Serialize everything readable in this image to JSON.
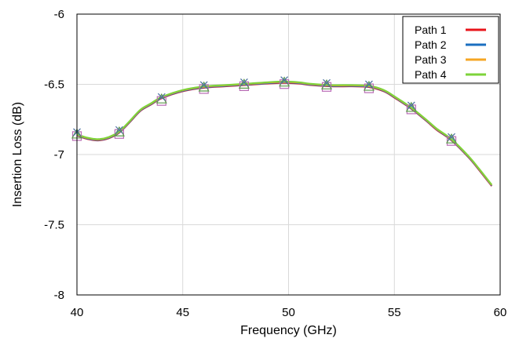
{
  "chart_data": {
    "type": "line",
    "xlabel": "Frequency (GHz)",
    "ylabel": "Insertion Loss (dB)",
    "xlim": [
      40,
      60
    ],
    "ylim": [
      -8,
      -6
    ],
    "x_ticks": [
      40,
      45,
      50,
      55,
      60
    ],
    "x_tick_labels": [
      "40",
      "45",
      "50",
      "55",
      "60"
    ],
    "y_ticks": [
      -6,
      -6.5,
      -7,
      -7.5,
      -8
    ],
    "y_tick_labels": [
      "-6",
      "-6.5",
      "-7",
      "-7.5",
      "-8"
    ],
    "grid": true,
    "legend_position": "top-right",
    "x": [
      40,
      40.5,
      41,
      41.5,
      42,
      42.5,
      43,
      43.5,
      44,
      45,
      46,
      47,
      48,
      49,
      49.8,
      50.5,
      51,
      52,
      53,
      53.8,
      54.5,
      55,
      55.8,
      56.5,
      57,
      57.7,
      58.5,
      59,
      59.6
    ],
    "series": [
      {
        "name": "Path 1",
        "color": "#e8141b",
        "values": [
          -6.865,
          -6.89,
          -6.9,
          -6.885,
          -6.845,
          -6.77,
          -6.69,
          -6.645,
          -6.6,
          -6.55,
          -6.525,
          -6.515,
          -6.505,
          -6.495,
          -6.49,
          -6.495,
          -6.505,
          -6.515,
          -6.515,
          -6.52,
          -6.55,
          -6.595,
          -6.675,
          -6.76,
          -6.825,
          -6.9,
          -7.02,
          -7.11,
          -7.225
        ]
      },
      {
        "name": "Path 2",
        "color": "#1b6fc0",
        "values": [
          -6.862,
          -6.887,
          -6.897,
          -6.882,
          -6.842,
          -6.767,
          -6.687,
          -6.642,
          -6.597,
          -6.547,
          -6.522,
          -6.512,
          -6.502,
          -6.492,
          -6.487,
          -6.492,
          -6.502,
          -6.512,
          -6.512,
          -6.517,
          -6.547,
          -6.592,
          -6.672,
          -6.757,
          -6.822,
          -6.897,
          -7.017,
          -7.107,
          -7.222
        ]
      },
      {
        "name": "Path 3",
        "color": "#f5a623",
        "values": [
          -6.858,
          -6.883,
          -6.893,
          -6.878,
          -6.838,
          -6.763,
          -6.683,
          -6.638,
          -6.593,
          -6.543,
          -6.518,
          -6.508,
          -6.498,
          -6.488,
          -6.483,
          -6.488,
          -6.498,
          -6.508,
          -6.508,
          -6.513,
          -6.543,
          -6.588,
          -6.668,
          -6.753,
          -6.818,
          -6.893,
          -7.013,
          -7.103,
          -7.218
        ]
      },
      {
        "name": "Path 4",
        "color": "#7dd33a",
        "values": [
          -6.855,
          -6.88,
          -6.89,
          -6.875,
          -6.835,
          -6.76,
          -6.68,
          -6.635,
          -6.59,
          -6.54,
          -6.515,
          -6.505,
          -6.495,
          -6.485,
          -6.48,
          -6.485,
          -6.495,
          -6.505,
          -6.505,
          -6.51,
          -6.54,
          -6.585,
          -6.665,
          -6.75,
          -6.815,
          -6.89,
          -7.01,
          -7.1,
          -7.215
        ]
      }
    ],
    "marker_x": [
      40,
      42,
      44,
      46,
      47.9,
      49.8,
      51.8,
      53.8,
      55.8,
      57.7
    ],
    "marker_y": [
      -6.86,
      -6.845,
      -6.61,
      -6.525,
      -6.505,
      -6.49,
      -6.51,
      -6.52,
      -6.67,
      -6.895
    ],
    "marker_colors": [
      "#b86bb5",
      "#5b9a4a",
      "#4a6fa0"
    ]
  }
}
